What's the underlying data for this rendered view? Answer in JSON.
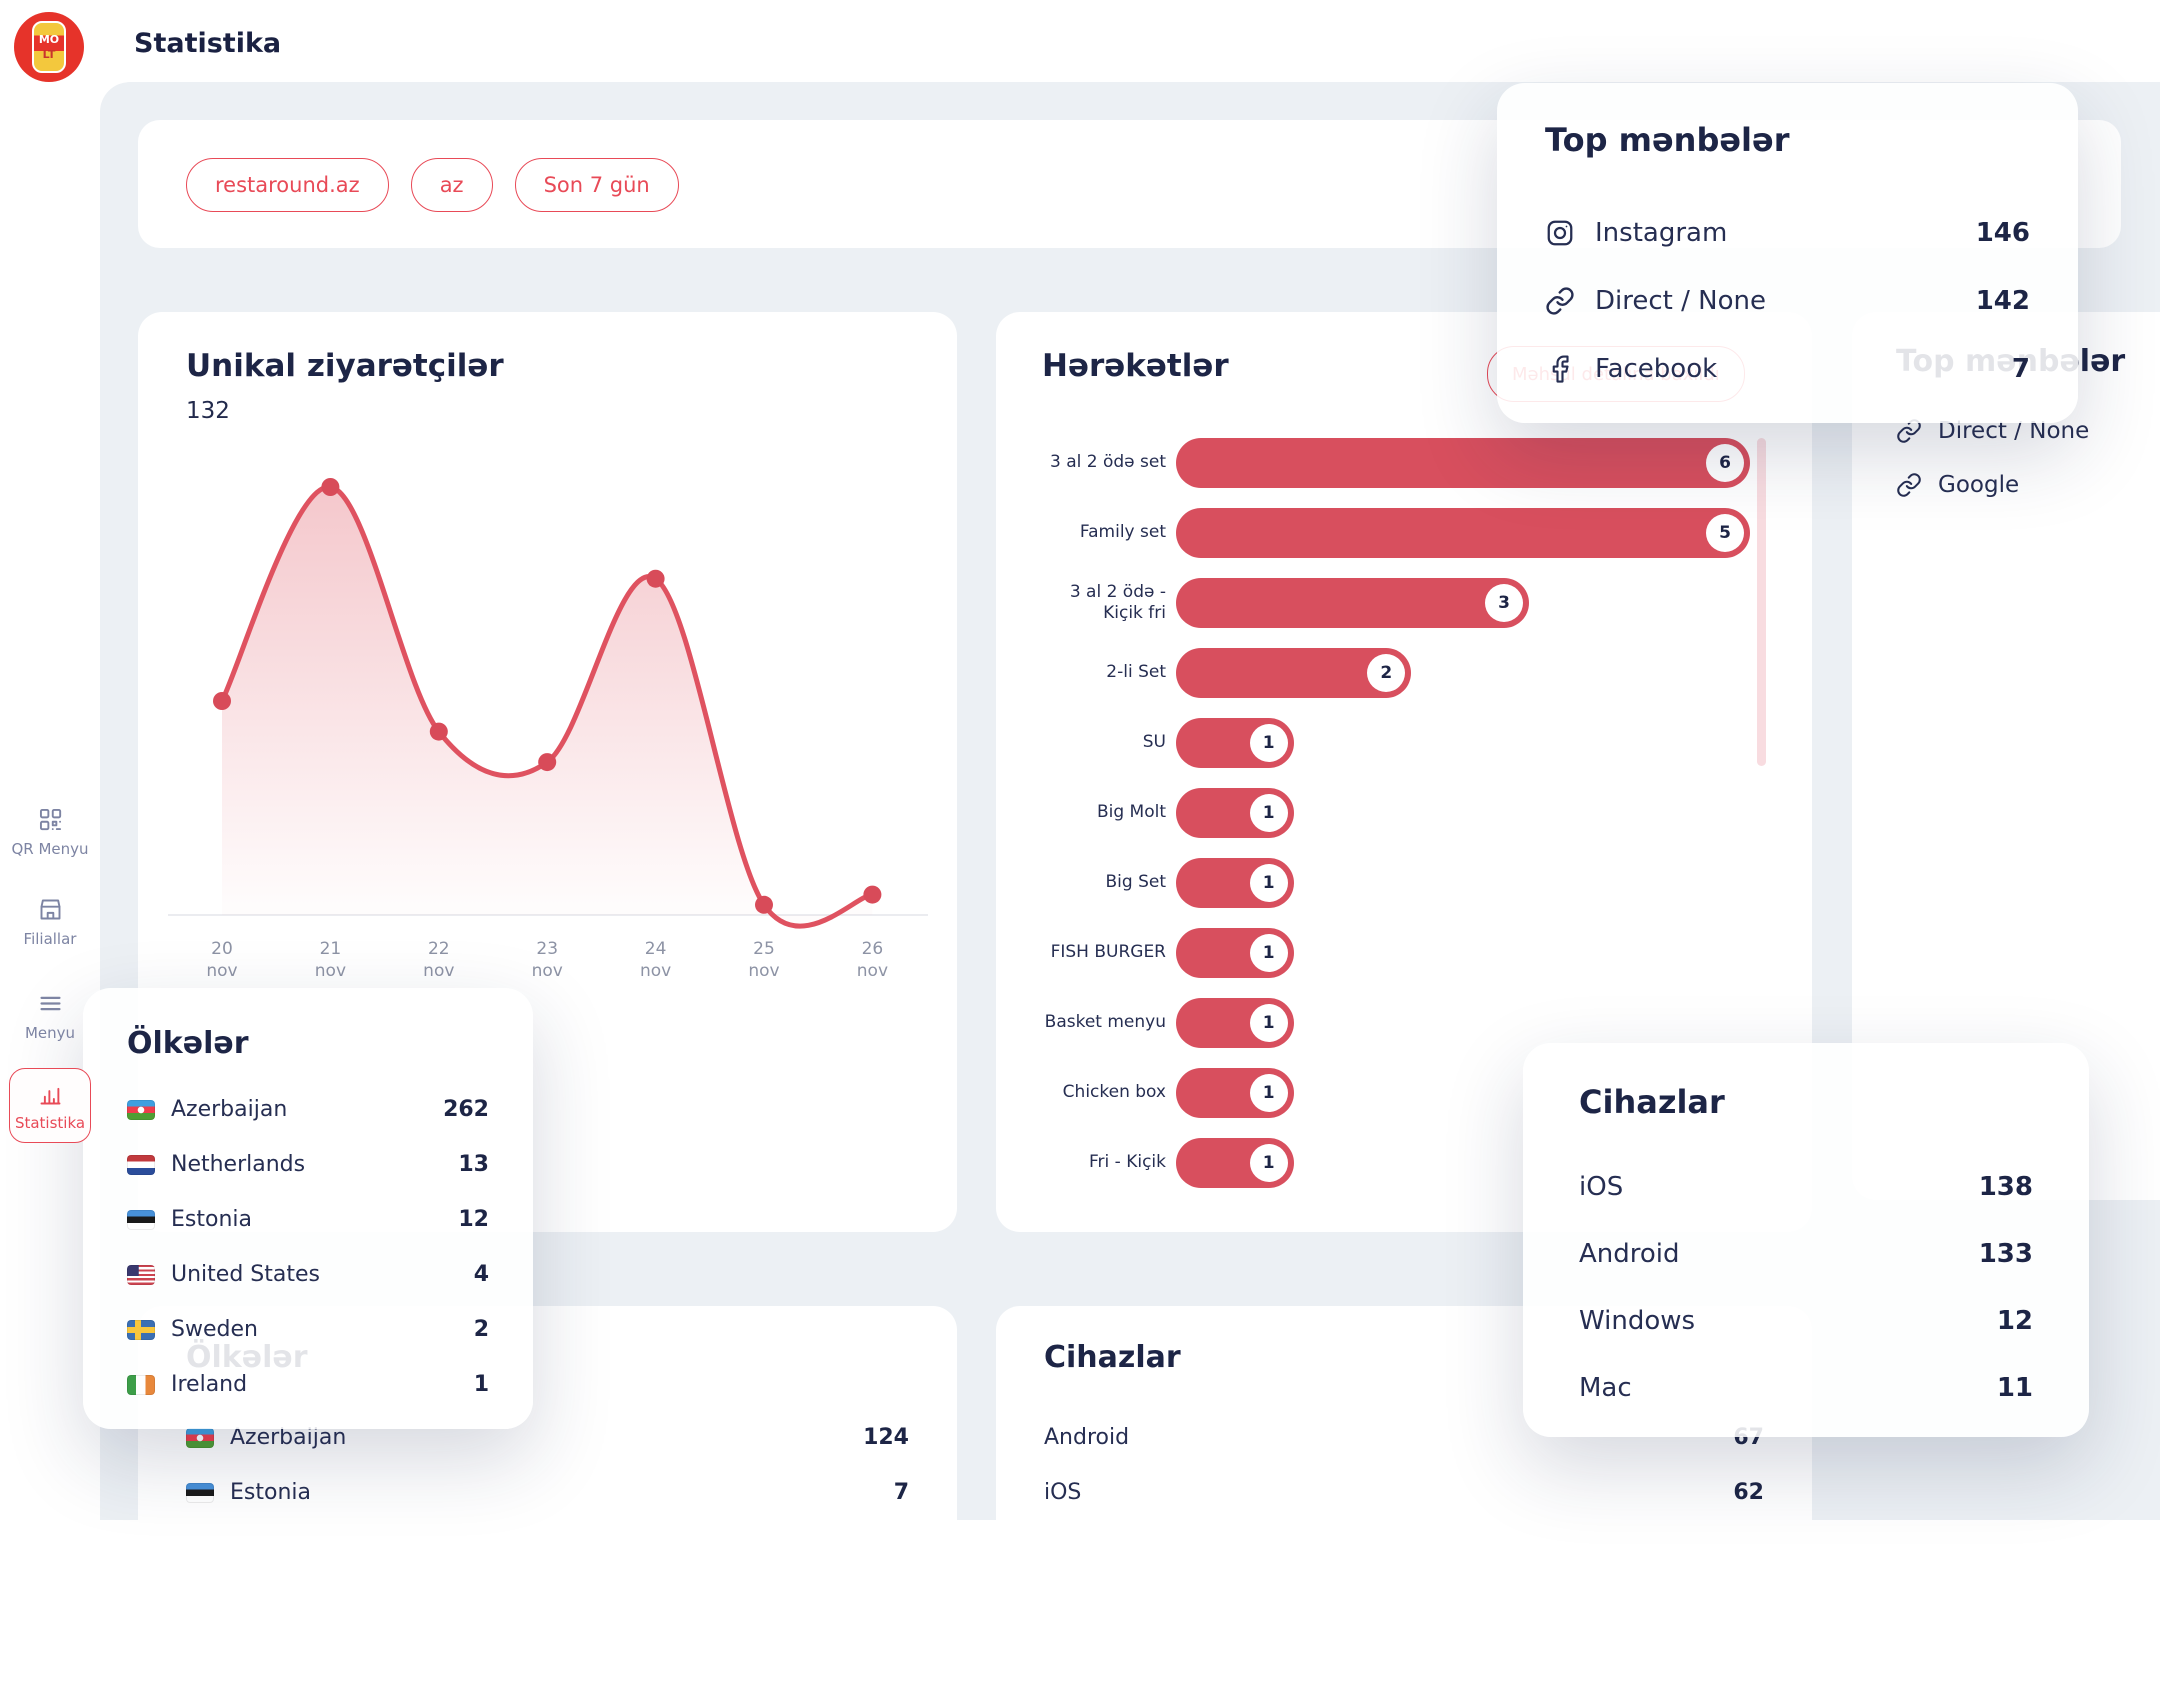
{
  "colors": {
    "accent": "#e84a57",
    "bar": "#d84f5e",
    "line": "#df5260",
    "navy": "#1d2546",
    "bg": "#ecf0f4",
    "sidebar_text": "#7d84a3"
  },
  "header": {
    "title": "Statistika",
    "logo_line1": "MO",
    "logo_line2": "LT"
  },
  "sidebar": {
    "items": [
      {
        "label": "QR Menyu",
        "icon": "qr-icon",
        "active": false
      },
      {
        "label": "Filiallar",
        "icon": "store-icon",
        "active": false
      },
      {
        "label": "Menyu",
        "icon": "menu-icon",
        "active": false
      },
      {
        "label": "Statistika",
        "icon": "stats-icon",
        "active": true
      }
    ]
  },
  "filters": {
    "chips": [
      {
        "label": "restaround.az"
      },
      {
        "label": "az"
      },
      {
        "label": "Son 7 gün"
      }
    ]
  },
  "cards": {
    "visitors": {
      "title": "Unikal ziyarətçilər",
      "total": "132"
    },
    "actions": {
      "title": "Hərəkətlər",
      "filter_pill": "Məhsul detalına baxıldı"
    },
    "sources_back": {
      "title": "Top mənbələr",
      "rows": [
        {
          "icon": "link-icon",
          "label": "Direct / None"
        },
        {
          "icon": "link-icon",
          "label": "Google"
        }
      ]
    },
    "countries_back": {
      "title": "Ölkələr",
      "rows": [
        {
          "flag": "az",
          "label": "Azerbaijan",
          "value": "124"
        },
        {
          "flag": "ee",
          "label": "Estonia",
          "value": "7"
        }
      ]
    },
    "devices_back": {
      "title": "Cihazlar",
      "rows": [
        {
          "label": "Android",
          "value": "67"
        },
        {
          "label": "iOS",
          "value": "62"
        }
      ]
    }
  },
  "overlays": {
    "sources": {
      "title": "Top mənbələr",
      "rows": [
        {
          "icon": "instagram-icon",
          "label": "Instagram",
          "value": "146"
        },
        {
          "icon": "link-icon",
          "label": "Direct / None",
          "value": "142"
        },
        {
          "icon": "facebook-icon",
          "label": "Facebook",
          "value": "7"
        }
      ]
    },
    "countries": {
      "title": "Ölkələr",
      "rows": [
        {
          "flag": "az",
          "label": "Azerbaijan",
          "value": "262"
        },
        {
          "flag": "nl",
          "label": "Netherlands",
          "value": "13"
        },
        {
          "flag": "ee",
          "label": "Estonia",
          "value": "12"
        },
        {
          "flag": "us",
          "label": "United States",
          "value": "4"
        },
        {
          "flag": "se",
          "label": "Sweden",
          "value": "2"
        },
        {
          "flag": "ie",
          "label": "Ireland",
          "value": "1"
        }
      ]
    },
    "devices": {
      "title": "Cihazlar",
      "rows": [
        {
          "label": "iOS",
          "value": "138"
        },
        {
          "label": "Android",
          "value": "133"
        },
        {
          "label": "Windows",
          "value": "12"
        },
        {
          "label": "Mac",
          "value": "11"
        }
      ]
    }
  },
  "chart_data": [
    {
      "id": "unique-visitors",
      "type": "area",
      "title": "Unikal ziyarətçilər",
      "total": 132,
      "x": [
        "20 nov",
        "21 nov",
        "22 nov",
        "23 nov",
        "24 nov",
        "25 nov",
        "26 nov"
      ],
      "values": [
        21,
        42,
        18,
        15,
        33,
        1,
        2
      ],
      "ylim": [
        0,
        45
      ],
      "grid": false,
      "legend": "none",
      "line_color": "#df5260",
      "point_color": "#d84b59",
      "fill": "red-gradient"
    },
    {
      "id": "actions",
      "type": "bar",
      "orientation": "horizontal",
      "title": "Hərəkətlər",
      "categories": [
        "3 al 2 ödə set",
        "Family set",
        "3 al 2 ödə - Kiçik fri",
        "2-li Set",
        "SU",
        "Big Molt",
        "Big Set",
        "FISH BURGER",
        "Basket menyu",
        "Chicken box",
        "Fri - Kiçik"
      ],
      "values": [
        6,
        5,
        3,
        2,
        1,
        1,
        1,
        1,
        1,
        1,
        1
      ],
      "xlim": [
        0,
        6
      ],
      "bar_color": "#d84f5e",
      "value_badges": true
    }
  ]
}
